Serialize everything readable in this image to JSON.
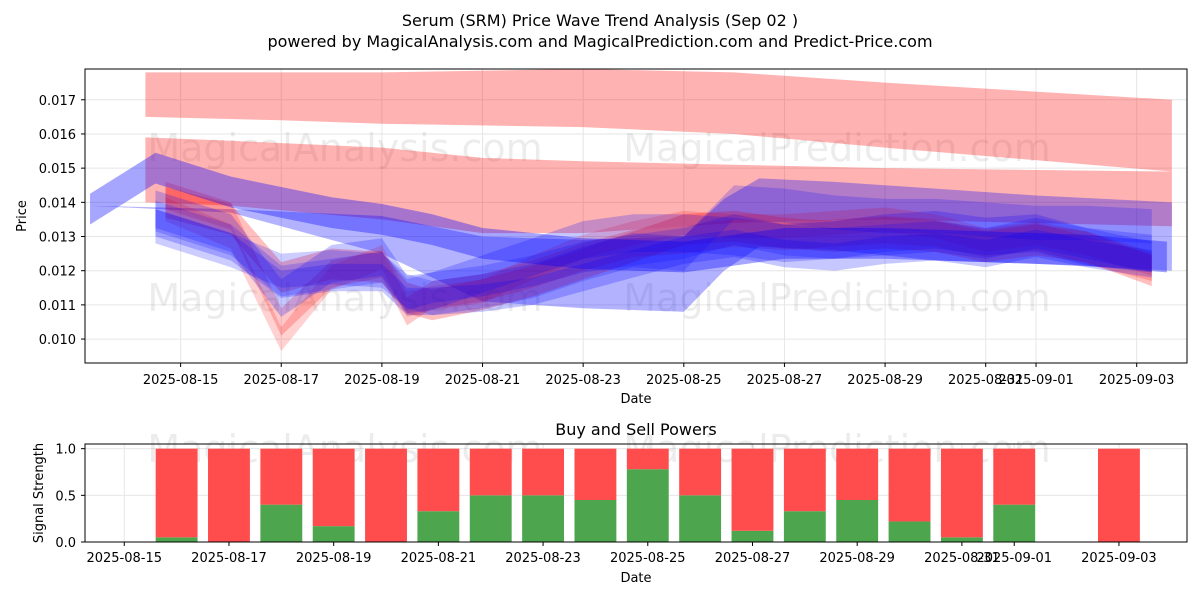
{
  "title": "Serum (SRM) Price Wave Trend Analysis (Sep 02 )",
  "subtitle": "powered by MagicalAnalysis.com and MagicalPrediction.com and Predict-Price.com",
  "watermarks": [
    "MagicalAnalysis.com",
    "MagicalPrediction.com"
  ],
  "chart_data": [
    {
      "type": "area",
      "name": "price-wave-trend",
      "xlabel": "Date",
      "ylabel": "Price",
      "grid": true,
      "x_tick_labels": [
        "2025-08-15",
        "2025-08-17",
        "2025-08-19",
        "2025-08-21",
        "2025-08-23",
        "2025-08-25",
        "2025-08-27",
        "2025-08-29",
        "2025-08-31",
        "2025-09-01",
        "2025-09-03"
      ],
      "x_tick_days": [
        1,
        3,
        5,
        7,
        9,
        11,
        13,
        15,
        17,
        18,
        20
      ],
      "xlim_days": [
        -0.9,
        21.0
      ],
      "y_tick_labels": [
        "0.010",
        "0.011",
        "0.012",
        "0.013",
        "0.014",
        "0.015",
        "0.016",
        "0.017"
      ],
      "y_ticks": [
        0.01,
        0.011,
        0.012,
        0.013,
        0.014,
        0.015,
        0.016,
        0.017
      ],
      "ylim": [
        0.0093,
        0.0179
      ],
      "red_bands": [
        {
          "name": "upper-resistance-band",
          "x": [
            0.3,
            3.0,
            5.0,
            9.0,
            12.0,
            15.0,
            20.7
          ],
          "upper": [
            0.0178,
            0.0178,
            0.0178,
            0.0179,
            0.0178,
            0.0175,
            0.017
          ],
          "lower": [
            0.0165,
            0.0164,
            0.0163,
            0.0162,
            0.016,
            0.0156,
            0.0149
          ]
        },
        {
          "name": "middle-resistance-band",
          "x": [
            0.3,
            2.0,
            5.0,
            7.0,
            9.0,
            12.0,
            15.0,
            20.7
          ],
          "upper": [
            0.0159,
            0.0158,
            0.0156,
            0.0153,
            0.0152,
            0.0151,
            0.015,
            0.0149
          ],
          "lower": [
            0.014,
            0.0139,
            0.0135,
            0.0131,
            0.0131,
            0.0134,
            0.0135,
            0.0133
          ]
        }
      ],
      "red_series": [
        {
          "x": [
            0.7,
            2.0,
            3.0,
            4.0,
            5.0,
            5.5,
            6.0,
            7.0,
            8.0,
            9.0,
            10.0,
            11.0,
            12.0,
            13.0,
            14.0,
            15.0,
            16.0,
            17.0,
            18.0,
            19.0,
            20.3
          ],
          "y": [
            0.014,
            0.0135,
            0.0118,
            0.0122,
            0.0121,
            0.0112,
            0.011,
            0.0113,
            0.0117,
            0.0122,
            0.0127,
            0.0132,
            0.0133,
            0.0131,
            0.013,
            0.0131,
            0.013,
            0.0127,
            0.0129,
            0.0127,
            0.012
          ],
          "width": 0.0009,
          "opacity": 0.25
        },
        {
          "x": [
            0.7,
            2.0,
            3.0,
            4.0,
            5.0,
            5.5,
            6.0,
            7.0,
            8.0,
            9.0,
            10.0,
            11.0,
            12.0,
            13.0,
            14.0,
            15.0,
            16.0,
            17.0,
            18.0,
            19.0,
            20.3
          ],
          "y": [
            0.0142,
            0.0136,
            0.0105,
            0.0119,
            0.0122,
            0.0108,
            0.0113,
            0.0115,
            0.0119,
            0.0124,
            0.0128,
            0.0129,
            0.0131,
            0.013,
            0.0131,
            0.0132,
            0.0131,
            0.0128,
            0.013,
            0.0126,
            0.0121
          ],
          "width": 0.0008,
          "opacity": 0.22
        },
        {
          "x": [
            0.7,
            2.0,
            3.0,
            4.0,
            5.0,
            5.5,
            6.0,
            7.0,
            8.0,
            9.0,
            10.0,
            11.0,
            12.0,
            13.0,
            14.0,
            15.0,
            16.0,
            17.0,
            18.0,
            19.0,
            20.3
          ],
          "y": [
            0.0138,
            0.013,
            0.01,
            0.0118,
            0.0124,
            0.011,
            0.0112,
            0.0114,
            0.0121,
            0.0127,
            0.0131,
            0.0134,
            0.0133,
            0.0133,
            0.0134,
            0.0135,
            0.0133,
            0.0129,
            0.0131,
            0.0128,
            0.0122
          ],
          "width": 0.0007,
          "opacity": 0.18
        }
      ],
      "blue_series": [
        {
          "x": [
            -0.8,
            0.5,
            2.0,
            3.0,
            4.0,
            5.0,
            6.0,
            7.0,
            9.0,
            11.0,
            12.0,
            13.0,
            15.0,
            17.0,
            19.0,
            20.6
          ],
          "y": [
            0.0138,
            0.015,
            0.0143,
            0.014,
            0.0137,
            0.0135,
            0.0132,
            0.0128,
            0.0125,
            0.0124,
            0.0126,
            0.0128,
            0.0128,
            0.0127,
            0.0126,
            0.0124
          ],
          "width": 0.0009,
          "opacity": 0.35
        },
        {
          "x": [
            0.5,
            2.0,
            3.0,
            4.0,
            5.0,
            5.5,
            6.0,
            7.0,
            8.0,
            9.0,
            10.0,
            11.0,
            12.0,
            13.0,
            14.0,
            15.0,
            16.0,
            17.0,
            18.0,
            19.0,
            20.3
          ],
          "y": [
            0.0138,
            0.0131,
            0.0112,
            0.0122,
            0.0124,
            0.0113,
            0.0114,
            0.0119,
            0.0124,
            0.0129,
            0.0131,
            0.0131,
            0.013,
            0.0128,
            0.0129,
            0.0131,
            0.0132,
            0.013,
            0.0131,
            0.0127,
            0.0125
          ],
          "width": 0.0011,
          "opacity": 0.22
        },
        {
          "x": [
            0.5,
            2.0,
            3.0,
            4.0,
            5.0,
            5.5,
            6.0,
            7.0,
            8.0,
            9.0,
            10.0,
            11.0,
            12.0,
            13.0,
            14.0,
            15.0,
            16.0,
            17.0,
            18.0,
            19.0,
            20.3
          ],
          "y": [
            0.0133,
            0.0126,
            0.012,
            0.0121,
            0.012,
            0.0114,
            0.0112,
            0.0114,
            0.0117,
            0.0122,
            0.0126,
            0.0125,
            0.014,
            0.0139,
            0.0137,
            0.0136,
            0.0136,
            0.0135,
            0.0134,
            0.0134,
            0.0133
          ],
          "width": 0.001,
          "opacity": 0.2
        },
        {
          "x": [
            0.5,
            2.0,
            3.0,
            4.0,
            5.0,
            5.5,
            6.0,
            7.0,
            8.0,
            9.0,
            10.0,
            11.0,
            12.0,
            13.0,
            14.0,
            15.0,
            16.0,
            17.0,
            18.0,
            19.0,
            20.3
          ],
          "y": [
            0.0136,
            0.0129,
            0.0117,
            0.0119,
            0.0121,
            0.0113,
            0.0115,
            0.0117,
            0.012,
            0.0124,
            0.0126,
            0.0128,
            0.0132,
            0.0129,
            0.0128,
            0.0129,
            0.013,
            0.0128,
            0.0131,
            0.0128,
            0.0124
          ],
          "width": 0.0009,
          "opacity": 0.2
        },
        {
          "x": [
            0.5,
            2.0,
            3.0,
            4.0,
            5.0,
            5.5,
            6.0,
            7.0,
            8.0,
            9.0,
            10.0,
            11.0,
            12.0,
            13.0,
            14.0,
            15.0,
            16.0,
            17.0,
            18.0,
            19.0,
            20.3
          ],
          "y": [
            0.0134,
            0.0127,
            0.0116,
            0.0118,
            0.0118,
            0.0111,
            0.0111,
            0.0112,
            0.0114,
            0.0118,
            0.0122,
            0.0126,
            0.0128,
            0.0125,
            0.0124,
            0.0126,
            0.0127,
            0.0125,
            0.0128,
            0.0125,
            0.0122
          ],
          "width": 0.0008,
          "opacity": 0.22
        }
      ],
      "blue_wide_band": {
        "x": [
          -0.8,
          2.0,
          5.0,
          7.0,
          9.0,
          11.0,
          11.8,
          12.5,
          14.0,
          16.0,
          18.0,
          20.7
        ],
        "upper": [
          0.0139,
          0.0138,
          0.0136,
          0.013,
          0.0129,
          0.013,
          0.0141,
          0.0147,
          0.0146,
          0.0144,
          0.0142,
          0.014
        ],
        "lower": [
          0.0139,
          0.0137,
          0.0125,
          0.0111,
          0.0109,
          0.0108,
          0.012,
          0.0127,
          0.0126,
          0.0123,
          0.0122,
          0.012
        ],
        "opacity": 0.3
      }
    },
    {
      "type": "bar",
      "name": "buy-and-sell-powers",
      "title": "Buy and Sell Powers",
      "xlabel": "Date",
      "ylabel": "Signal Strength",
      "grid": true,
      "x_tick_labels": [
        "2025-08-15",
        "2025-08-17",
        "2025-08-19",
        "2025-08-21",
        "2025-08-23",
        "2025-08-25",
        "2025-08-27",
        "2025-08-29",
        "2025-08-31",
        "2025-09-01",
        "2025-09-03"
      ],
      "x_tick_days": [
        0,
        2,
        4,
        6,
        8,
        10,
        12,
        14,
        16,
        17,
        19
      ],
      "xlim_days": [
        -0.75,
        20.3
      ],
      "y_tick_labels": [
        "0.0",
        "0.5",
        "1.0"
      ],
      "y_ticks": [
        0.0,
        0.5,
        1.0
      ],
      "ylim": [
        0.0,
        1.05
      ],
      "bar_days": [
        1,
        2,
        3,
        4,
        5,
        6,
        7,
        8,
        9,
        10,
        11,
        12,
        13,
        14,
        15,
        16,
        17,
        19
      ],
      "buy": [
        0.05,
        0.0,
        0.4,
        0.17,
        0.0,
        0.33,
        0.5,
        0.5,
        0.45,
        0.78,
        0.5,
        0.12,
        0.33,
        0.45,
        0.22,
        0.05,
        0.4,
        0.0
      ],
      "sell": [
        0.95,
        1.0,
        0.6,
        0.83,
        1.0,
        0.67,
        0.5,
        0.5,
        0.55,
        0.22,
        0.5,
        0.88,
        0.67,
        0.55,
        0.78,
        0.95,
        0.6,
        1.0
      ],
      "buy_color": "#4da64d",
      "sell_color": "#ff4d4d"
    }
  ],
  "colors": {
    "red": "#ff0000",
    "blue": "#0000ff",
    "grid": "#e6e6e6",
    "axis": "#000000"
  }
}
